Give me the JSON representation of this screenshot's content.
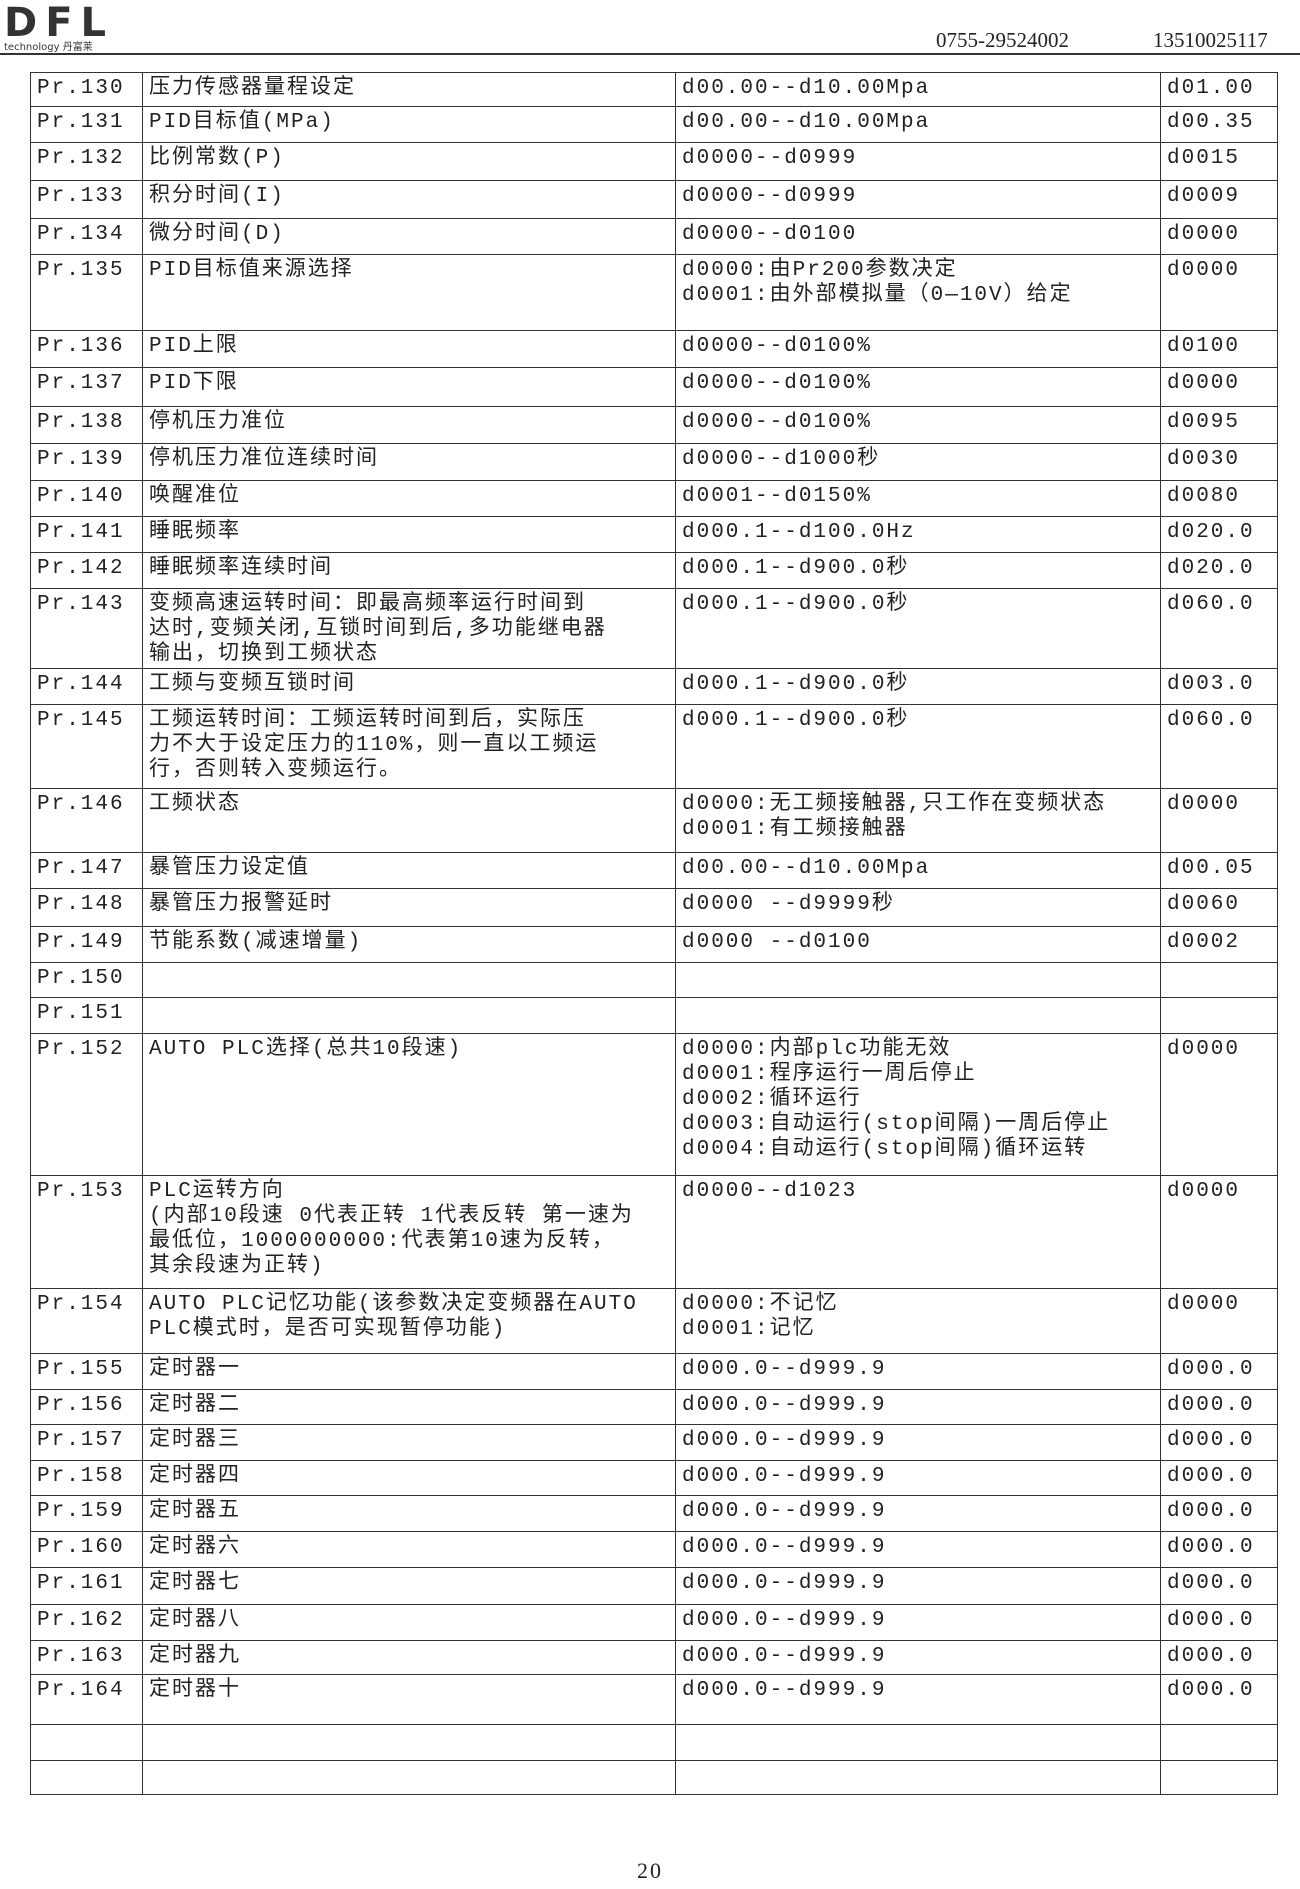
{
  "header": {
    "logo": "DFL",
    "logo_sub": "technology 丹富莱",
    "phone1": "0755-29524002",
    "phone2": "13510025117"
  },
  "table": {
    "rows": [
      {
        "no": "Pr.130",
        "name": "压力传感器量程设定",
        "range": "d00.00--d10.00Mpa",
        "default": "d01.00"
      },
      {
        "no": "Pr.131",
        "name": "PID目标值(MPa)",
        "range": "d00.00--d10.00Mpa",
        "default": "d00.35"
      },
      {
        "no": "Pr.132",
        "name": "比例常数(P)",
        "range": "d0000--d0999",
        "default": "d0015"
      },
      {
        "no": "Pr.133",
        "name": "积分时间(I)",
        "range": "d0000--d0999",
        "default": "d0009"
      },
      {
        "no": "Pr.134",
        "name": "微分时间(D)",
        "range": "d0000--d0100",
        "default": "d0000"
      },
      {
        "no": "Pr.135",
        "name": "PID目标值来源选择",
        "range": [
          "d0000:由Pr200参数决定",
          "d0001:由外部模拟量（0—10V）给定"
        ],
        "default": "d0000"
      },
      {
        "no": "Pr.136",
        "name": "PID上限",
        "range": "d0000--d0100%",
        "default": "d0100"
      },
      {
        "no": "Pr.137",
        "name": "PID下限",
        "range": "d0000--d0100%",
        "default": "d0000"
      },
      {
        "no": "Pr.138",
        "name": "停机压力准位",
        "range": "d0000--d0100%",
        "default": "d0095"
      },
      {
        "no": "Pr.139",
        "name": "停机压力准位连续时间",
        "range": "d0000--d1000秒",
        "default": "d0030"
      },
      {
        "no": "Pr.140",
        "name": "唤醒准位",
        "range": "d0001--d0150%",
        "default": "d0080"
      },
      {
        "no": "Pr.141",
        "name": "睡眠频率",
        "range": "d000.1--d100.0Hz",
        "default": "d020.0"
      },
      {
        "no": "Pr.142",
        "name": "睡眠频率连续时间",
        "range": "d000.1--d900.0秒",
        "default": "d020.0"
      },
      {
        "no": "Pr.143",
        "name": [
          "变频高速运转时间：即最高频率运行时间到",
          "达时,变频关闭,互锁时间到后,多功能继电器",
          "输出，切换到工频状态"
        ],
        "range": "d000.1--d900.0秒",
        "default": "d060.0"
      },
      {
        "no": "Pr.144",
        "name": "工频与变频互锁时间",
        "range": "d000.1--d900.0秒",
        "default": "d003.0"
      },
      {
        "no": "Pr.145",
        "name": [
          "工频运转时间：工频运转时间到后，实际压",
          "力不大于设定压力的110%，则一直以工频运",
          "行，否则转入变频运行。"
        ],
        "range": "d000.1--d900.0秒",
        "default": "d060.0"
      },
      {
        "no": "Pr.146",
        "name": "工频状态",
        "range": [
          "d0000:无工频接触器,只工作在变频状态",
          "d0001:有工频接触器"
        ],
        "default": "d0000"
      },
      {
        "no": "Pr.147",
        "name": "暴管压力设定值",
        "range": "d00.00--d10.00Mpa",
        "default": "d00.05"
      },
      {
        "no": "Pr.148",
        "name": "暴管压力报警延时",
        "range": "d0000 --d9999秒",
        "default": "d0060"
      },
      {
        "no": "Pr.149",
        "name": "节能系数(减速增量)",
        "range": "d0000 --d0100",
        "default": "d0002"
      },
      {
        "no": "Pr.150"
      },
      {
        "no": "Pr.151"
      },
      {
        "no": "Pr.152",
        "name": "AUTO PLC选择(总共10段速)",
        "range": [
          "d0000:内部plc功能无效",
          "d0001:程序运行一周后停止",
          "d0002:循环运行",
          "d0003:自动运行(stop间隔)一周后停止",
          "d0004:自动运行(stop间隔)循环运转"
        ],
        "default": "d0000"
      },
      {
        "no": "Pr.153",
        "name": [
          "PLC运转方向",
          "(内部10段速 0代表正转 1代表反转 第一速为",
          "最低位，1000000000:代表第10速为反转，",
          "其余段速为正转)"
        ],
        "range": "d0000--d1023",
        "default": "d0000"
      },
      {
        "no": "Pr.154",
        "name": [
          "AUTO PLC记忆功能(该参数决定变频器在AUTO",
          "PLC模式时，是否可实现暂停功能)"
        ],
        "range": [
          "d0000:不记忆",
          "d0001:记忆"
        ],
        "default": "d0000"
      },
      {
        "no": "Pr.155",
        "name": "定时器一",
        "range": "d000.0--d999.9",
        "default": "d000.0"
      },
      {
        "no": "Pr.156",
        "name": "定时器二",
        "range": "d000.0--d999.9",
        "default": "d000.0"
      },
      {
        "no": "Pr.157",
        "name": "定时器三",
        "range": "d000.0--d999.9",
        "default": "d000.0"
      },
      {
        "no": "Pr.158",
        "name": "定时器四",
        "range": "d000.0--d999.9",
        "default": "d000.0"
      },
      {
        "no": "Pr.159",
        "name": "定时器五",
        "range": "d000.0--d999.9",
        "default": "d000.0"
      },
      {
        "no": "Pr.160",
        "name": "定时器六",
        "range": "d000.0--d999.9",
        "default": "d000.0"
      },
      {
        "no": "Pr.161",
        "name": "定时器七",
        "range": "d000.0--d999.9",
        "default": "d000.0"
      },
      {
        "no": "Pr.162",
        "name": "定时器八",
        "range": "d000.0--d999.9",
        "default": "d000.0"
      },
      {
        "no": "Pr.163",
        "name": "定时器九",
        "range": "d000.0--d999.9",
        "default": "d000.0"
      },
      {
        "no": "Pr.164",
        "name": "定时器十",
        "range": "d000.0--d999.9",
        "default": "d000.0"
      }
    ]
  },
  "footer": {
    "page": "20"
  }
}
